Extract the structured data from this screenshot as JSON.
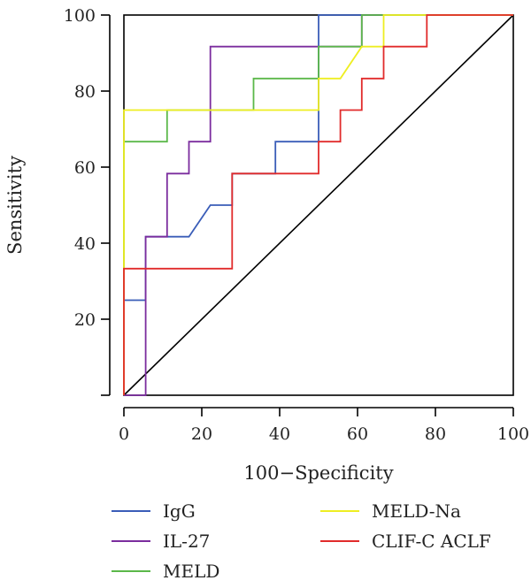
{
  "chart_data": {
    "type": "line",
    "title": "",
    "xlabel": "100−Specificity",
    "ylabel": "Sensitivity",
    "xlim": [
      0,
      100
    ],
    "ylim": [
      0,
      100
    ],
    "x_ticks": [
      "0",
      "20",
      "40",
      "60",
      "80",
      "100"
    ],
    "y_ticks": [
      "",
      "20",
      "40",
      "60",
      "80",
      "100"
    ],
    "y_tick_values": [
      0,
      20,
      40,
      60,
      80,
      100
    ],
    "grid": false,
    "legend_position": "bottom",
    "reference_line": {
      "x": [
        0,
        100
      ],
      "y": [
        0,
        100
      ],
      "color": "#000000"
    },
    "series": [
      {
        "name": "IgG",
        "color": "#3a5db8",
        "x": [
          0,
          0,
          5.6,
          5.6,
          16.7,
          22.2,
          27.8,
          27.8,
          38.9,
          38.9,
          50,
          50,
          100
        ],
        "y": [
          0,
          25,
          25,
          41.7,
          41.7,
          50,
          50,
          58.3,
          58.3,
          66.7,
          66.7,
          100,
          100
        ]
      },
      {
        "name": "IL-27",
        "color": "#7b2d9e",
        "x": [
          0,
          5.6,
          5.6,
          11.1,
          11.1,
          16.7,
          16.7,
          22.2,
          22.2,
          50,
          50,
          61.1,
          61.1,
          100
        ],
        "y": [
          0,
          0,
          41.7,
          41.7,
          58.3,
          58.3,
          66.7,
          66.7,
          91.7,
          91.7,
          91.7,
          91.7,
          100,
          100
        ]
      },
      {
        "name": "MELD",
        "color": "#5bb84a",
        "x": [
          0,
          0,
          11.1,
          11.1,
          33.3,
          33.3,
          50,
          50,
          61.1,
          61.1,
          100
        ],
        "y": [
          0,
          66.7,
          66.7,
          75,
          75,
          83.3,
          83.3,
          91.7,
          91.7,
          100,
          100
        ]
      },
      {
        "name": "MELD-Na",
        "color": "#eeee22",
        "x": [
          0,
          0,
          50,
          50,
          55.6,
          61.1,
          66.7,
          66.7,
          100
        ],
        "y": [
          0,
          75,
          75,
          83.3,
          83.3,
          91.7,
          91.7,
          100,
          100
        ]
      },
      {
        "name": "CLIF-C ACLF",
        "color": "#e12b2b",
        "x": [
          0,
          0,
          27.8,
          27.8,
          50,
          50,
          55.6,
          55.6,
          61.1,
          61.1,
          66.7,
          66.7,
          77.8,
          77.8,
          100
        ],
        "y": [
          0,
          33.3,
          33.3,
          58.3,
          58.3,
          66.7,
          66.7,
          75,
          75,
          83.3,
          83.3,
          91.7,
          91.7,
          100,
          100
        ]
      }
    ]
  }
}
